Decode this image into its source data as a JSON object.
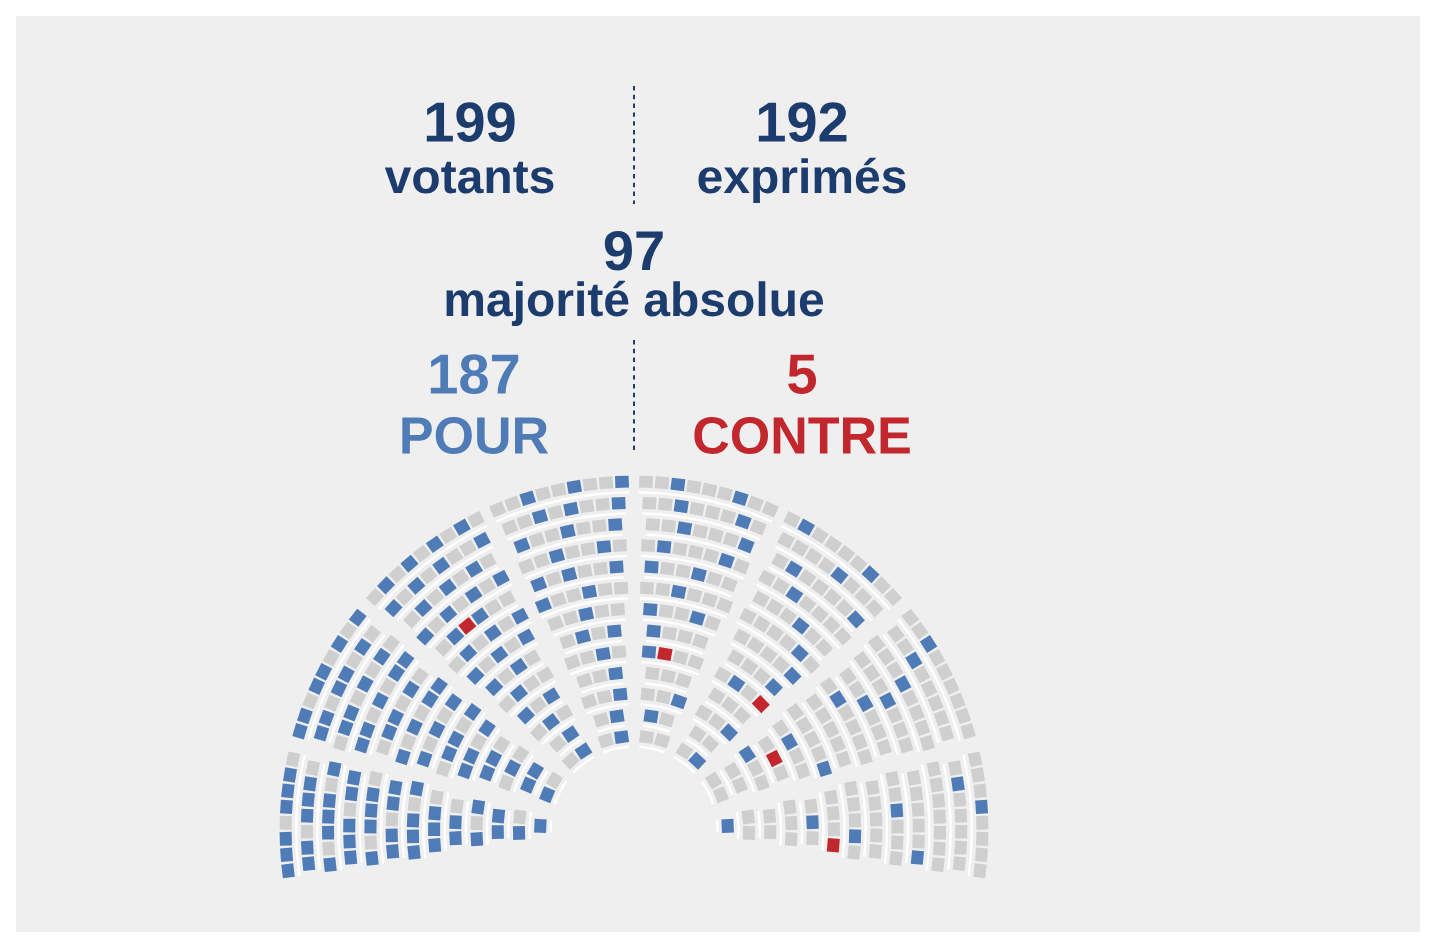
{
  "chart_data": {
    "type": "other",
    "categories": [
      "POUR",
      "CONTRE"
    ],
    "values": [
      187,
      5
    ],
    "colors": [
      "#4f7bb6",
      "#c1272d"
    ],
    "data_labels": true,
    "annotations": [
      "199",
      "votants",
      "192",
      "exprimés",
      "97",
      "majorité absolue"
    ]
  }
}
